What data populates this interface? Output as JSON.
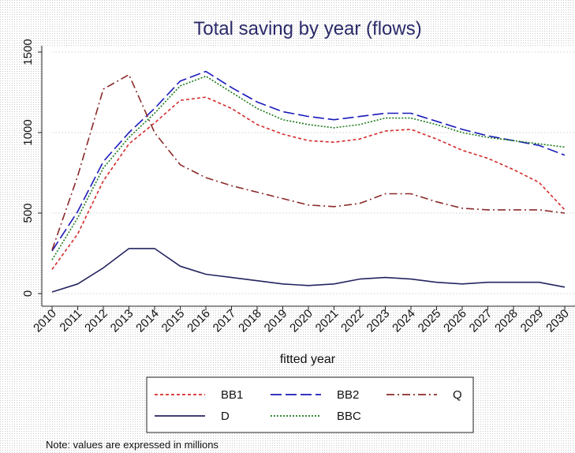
{
  "chart_data": {
    "type": "line",
    "title": "Total saving by year (flows)",
    "xlabel": "fitted year",
    "ylabel": "",
    "x": [
      2010,
      2011,
      2012,
      2013,
      2014,
      2015,
      2016,
      2017,
      2018,
      2019,
      2020,
      2021,
      2022,
      2023,
      2024,
      2025,
      2026,
      2027,
      2028,
      2029,
      2030
    ],
    "xlim": [
      2010,
      2030
    ],
    "ylim": [
      0,
      1500
    ],
    "yticks": [
      0,
      500,
      1000,
      1500
    ],
    "grid": true,
    "legend_position": "bottom",
    "series": [
      {
        "name": "BB1",
        "color": "#d42a2a",
        "dash": "short-dash",
        "values": [
          150,
          370,
          700,
          930,
          1060,
          1200,
          1220,
          1150,
          1050,
          990,
          950,
          940,
          960,
          1010,
          1020,
          960,
          890,
          840,
          770,
          690,
          520
        ]
      },
      {
        "name": "BB2",
        "color": "#1a1aba",
        "dash": "long-dash",
        "values": [
          265,
          510,
          820,
          1000,
          1150,
          1320,
          1380,
          1280,
          1190,
          1130,
          1100,
          1080,
          1100,
          1120,
          1120,
          1070,
          1020,
          980,
          950,
          920,
          860
        ]
      },
      {
        "name": "Q",
        "color": "#8a2a2a",
        "dash": "dash-dot",
        "values": [
          270,
          730,
          1270,
          1360,
          1000,
          800,
          720,
          670,
          630,
          590,
          550,
          540,
          560,
          620,
          620,
          570,
          530,
          520,
          520,
          520,
          500
        ]
      },
      {
        "name": "D",
        "color": "#242460",
        "dash": "solid",
        "values": [
          10,
          60,
          160,
          280,
          280,
          170,
          120,
          100,
          80,
          60,
          50,
          60,
          90,
          100,
          90,
          70,
          60,
          70,
          70,
          70,
          40
        ]
      },
      {
        "name": "BBC",
        "color": "#1a7a1a",
        "dash": "dotted",
        "values": [
          210,
          470,
          780,
          970,
          1120,
          1290,
          1350,
          1250,
          1150,
          1080,
          1050,
          1030,
          1050,
          1090,
          1090,
          1050,
          1000,
          970,
          950,
          930,
          910
        ]
      }
    ]
  },
  "note": "Note: values are expressed in millions"
}
